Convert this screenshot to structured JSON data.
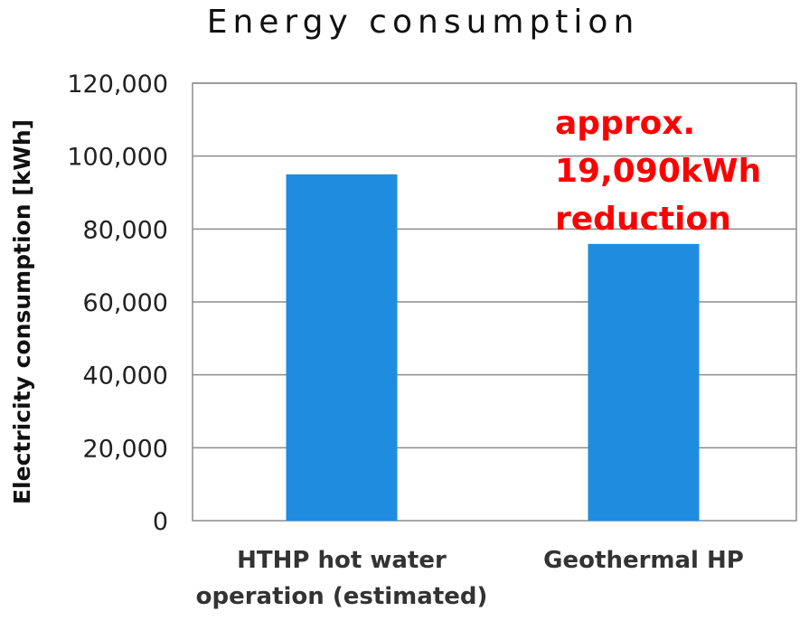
{
  "chart_data": {
    "type": "bar",
    "title": "Energy consumption",
    "xlabel": "",
    "ylabel": "Electricity consumption [kWh]",
    "categories": [
      [
        "HTHP hot water",
        "operation (estimated)"
      ],
      [
        "Geothermal HP"
      ]
    ],
    "values": [
      95000,
      75910
    ],
    "ylim": [
      0,
      120000
    ],
    "yticks": [
      0,
      20000,
      40000,
      60000,
      80000,
      100000,
      120000
    ],
    "ytick_labels": [
      "0",
      "20,000",
      "40,000",
      "60,000",
      "80,000",
      "100,000",
      "120,000"
    ],
    "grid": true,
    "legend": "none",
    "bar_color": "#1f8ce0",
    "annotation": {
      "lines": [
        "approx.",
        "19,090kWh",
        "reduction"
      ],
      "color": "#ff0000"
    }
  }
}
